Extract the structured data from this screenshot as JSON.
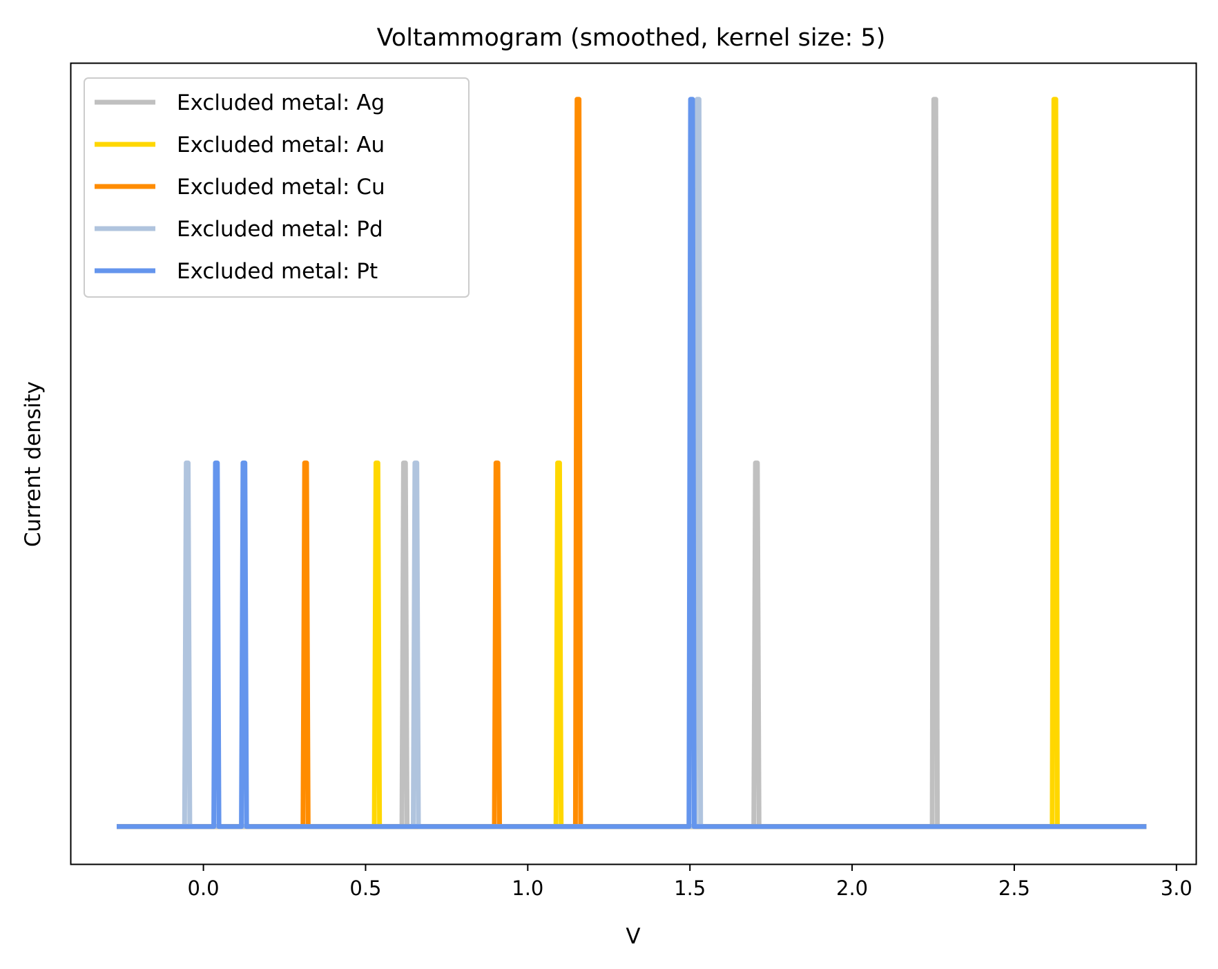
{
  "chart_data": {
    "type": "line",
    "title": "Voltammogram (smoothed, kernel size: 5)",
    "xlabel": "V",
    "ylabel": "Current density",
    "xlim": [
      -0.41,
      3.06
    ],
    "ylim": [
      -0.103,
      2.1
    ],
    "x_ticks": [
      0.0,
      0.5,
      1.0,
      1.5,
      2.0,
      2.5,
      3.0
    ],
    "x_tick_labels": [
      "0.0",
      "0.5",
      "1.0",
      "1.5",
      "2.0",
      "2.5",
      "3.0"
    ],
    "y_ticks_visible": false,
    "grid": false,
    "legend": "upper-left",
    "x_range": [
      -0.26,
      2.9
    ],
    "baseline": 0,
    "series": [
      {
        "name": "Excluded metal: Ag",
        "color": "#c0c0c0",
        "peaks": [
          {
            "x": 0.62,
            "height": 1
          },
          {
            "x": 1.705,
            "height": 1
          },
          {
            "x": 2.255,
            "height": 2
          }
        ]
      },
      {
        "name": "Excluded metal: Au",
        "color": "#ffd700",
        "peaks": [
          {
            "x": 0.535,
            "height": 1
          },
          {
            "x": 1.095,
            "height": 1
          },
          {
            "x": 2.625,
            "height": 2
          }
        ]
      },
      {
        "name": "Excluded metal: Cu",
        "color": "#ff8c00",
        "peaks": [
          {
            "x": 0.315,
            "height": 1
          },
          {
            "x": 0.905,
            "height": 1
          },
          {
            "x": 1.155,
            "height": 2
          }
        ]
      },
      {
        "name": "Excluded metal: Pd",
        "color": "#b0c4de",
        "peaks": [
          {
            "x": -0.05,
            "height": 1
          },
          {
            "x": 0.655,
            "height": 1
          },
          {
            "x": 1.525,
            "height": 2
          }
        ]
      },
      {
        "name": "Excluded metal: Pt",
        "color": "#6495ed",
        "peaks": [
          {
            "x": 0.04,
            "height": 1
          },
          {
            "x": 0.125,
            "height": 1
          },
          {
            "x": 1.505,
            "height": 2
          }
        ]
      }
    ]
  }
}
